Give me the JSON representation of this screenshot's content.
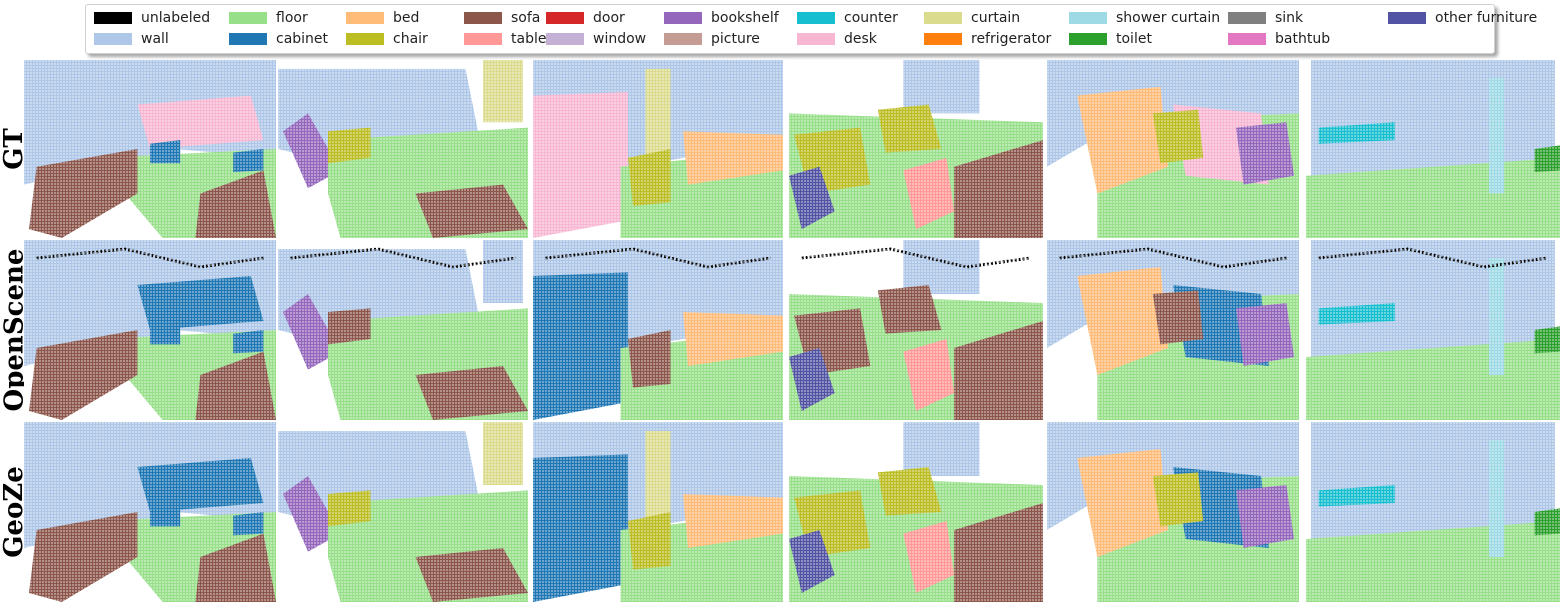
{
  "legend": [
    {
      "label": "unlabeled",
      "color": "#000000"
    },
    {
      "label": "wall",
      "color": "#aec7e8"
    },
    {
      "label": "floor",
      "color": "#98df8a"
    },
    {
      "label": "cabinet",
      "color": "#1f77b4"
    },
    {
      "label": "bed",
      "color": "#ffbb78"
    },
    {
      "label": "chair",
      "color": "#bcbd22"
    },
    {
      "label": "sofa",
      "color": "#8c564b"
    },
    {
      "label": "table",
      "color": "#ff9896"
    },
    {
      "label": "door",
      "color": "#d62728"
    },
    {
      "label": "window",
      "color": "#c5b0d5"
    },
    {
      "label": "bookshelf",
      "color": "#9467bd"
    },
    {
      "label": "picture",
      "color": "#c49c94"
    },
    {
      "label": "counter",
      "color": "#17becf"
    },
    {
      "label": "desk",
      "color": "#f7b6d2"
    },
    {
      "label": "curtain",
      "color": "#dbdb8d"
    },
    {
      "label": "refrigerator",
      "color": "#ff7f0e"
    },
    {
      "label": "shower curtain",
      "color": "#9edae5"
    },
    {
      "label": "toilet",
      "color": "#2ca02c"
    },
    {
      "label": "sink",
      "color": "#7f7f7f"
    },
    {
      "label": "bathtub",
      "color": "#e377c2"
    },
    {
      "label": "other furniture",
      "color": "#5254a3"
    }
  ],
  "rows": [
    {
      "label": "GT"
    },
    {
      "label": "OpenScene"
    },
    {
      "label": "GeoZe"
    }
  ]
}
